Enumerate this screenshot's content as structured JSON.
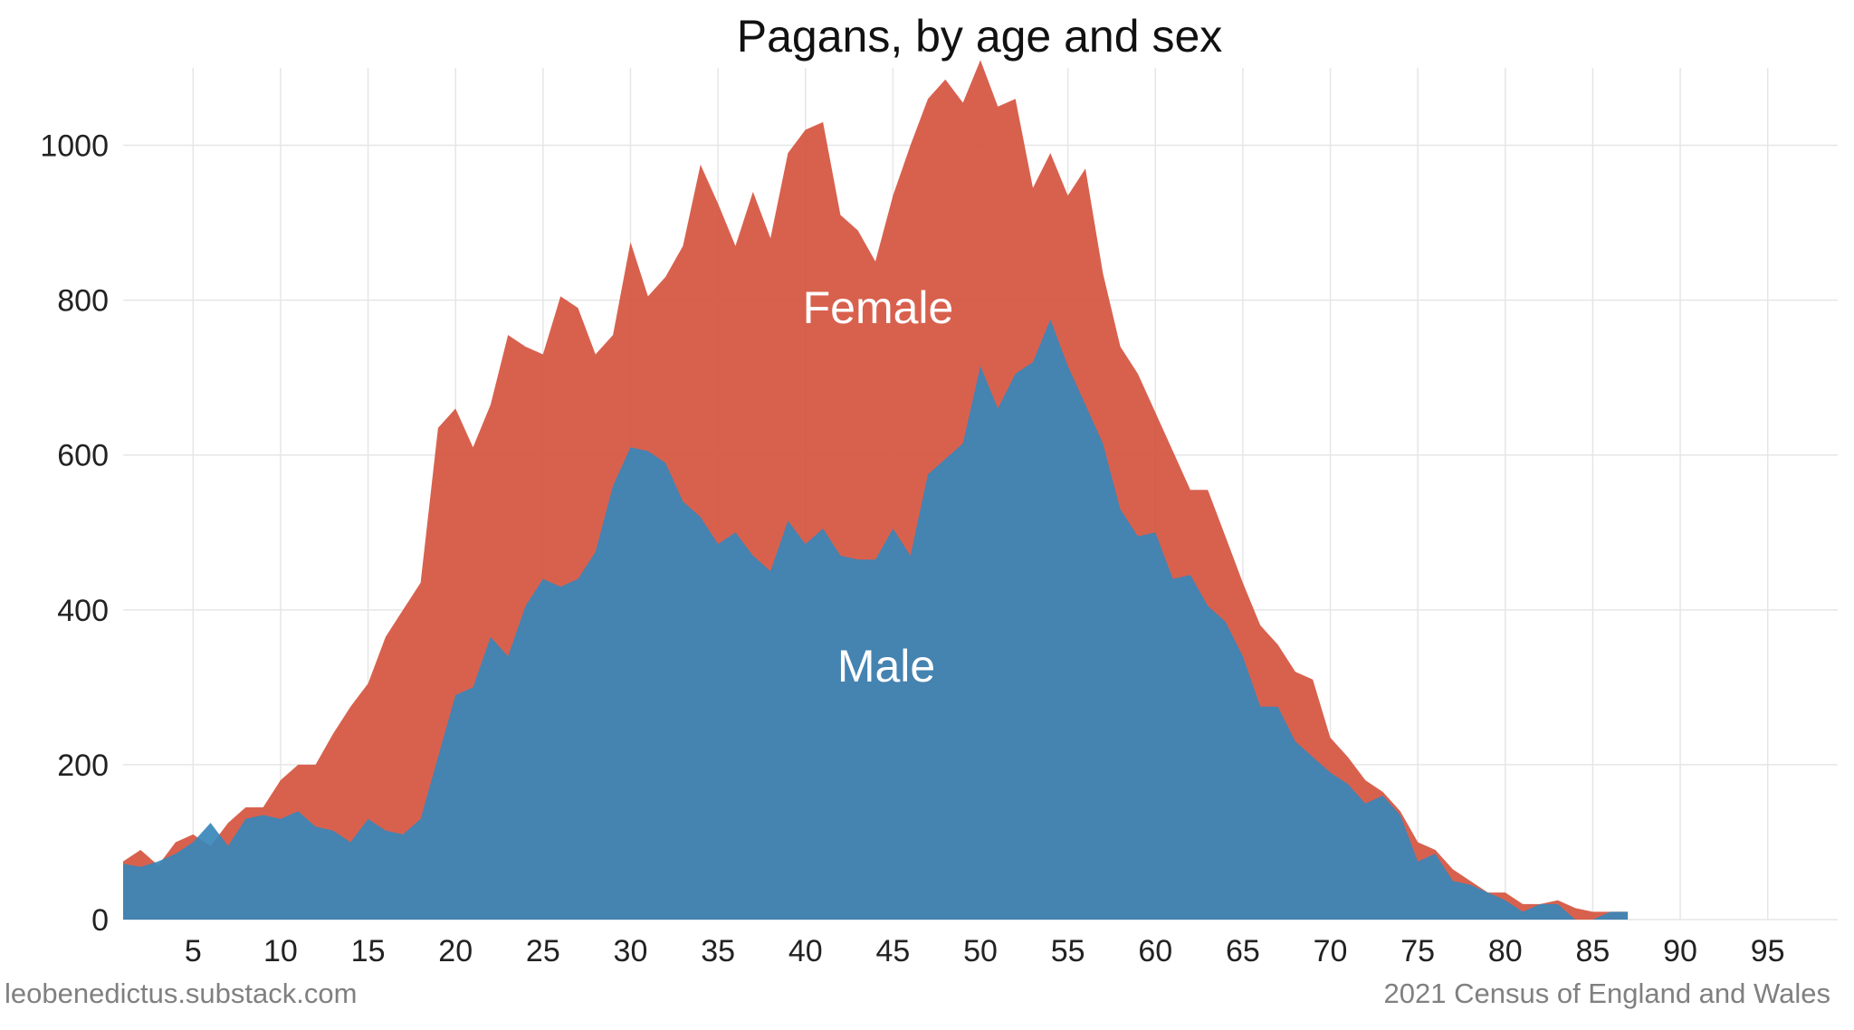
{
  "chart_data": {
    "type": "area",
    "title": "Pagans, by age and sex",
    "xlabel": "",
    "ylabel": "",
    "xlim": [
      1,
      99
    ],
    "ylim": [
      0,
      1100
    ],
    "grid": true,
    "x_ticks": [
      5,
      10,
      15,
      20,
      25,
      30,
      35,
      40,
      45,
      50,
      55,
      60,
      65,
      70,
      75,
      80,
      85,
      90,
      95
    ],
    "y_ticks": [
      0,
      200,
      400,
      600,
      800,
      1000
    ],
    "x": [
      1,
      2,
      3,
      4,
      5,
      6,
      7,
      8,
      9,
      10,
      11,
      12,
      13,
      14,
      15,
      16,
      17,
      18,
      19,
      20,
      21,
      22,
      23,
      24,
      25,
      26,
      27,
      28,
      29,
      30,
      31,
      32,
      33,
      34,
      35,
      36,
      37,
      38,
      39,
      40,
      41,
      42,
      43,
      44,
      45,
      46,
      47,
      48,
      49,
      50,
      51,
      52,
      53,
      54,
      55,
      56,
      57,
      58,
      59,
      60,
      61,
      62,
      63,
      64,
      65,
      66,
      67,
      68,
      69,
      70,
      71,
      72,
      73,
      74,
      75,
      76,
      77,
      78,
      79,
      80,
      81,
      82,
      83,
      84,
      85,
      86,
      87
    ],
    "series": [
      {
        "name": "Female",
        "color": "#d5543f",
        "values": [
          75,
          90,
          70,
          100,
          110,
          95,
          125,
          145,
          145,
          180,
          200,
          200,
          240,
          275,
          305,
          365,
          400,
          435,
          635,
          660,
          610,
          665,
          755,
          740,
          730,
          805,
          790,
          730,
          755,
          875,
          805,
          830,
          870,
          975,
          925,
          870,
          940,
          880,
          990,
          1020,
          1030,
          910,
          890,
          850,
          935,
          1000,
          1060,
          1085,
          1055,
          1110,
          1050,
          1060,
          945,
          990,
          935,
          970,
          835,
          740,
          705,
          655,
          605,
          555,
          555,
          495,
          435,
          380,
          355,
          320,
          310,
          235,
          210,
          180,
          165,
          140,
          100,
          90,
          65,
          50,
          35,
          35,
          20,
          20,
          25,
          15,
          10,
          10,
          10
        ]
      },
      {
        "name": "Male",
        "color": "#3887ba",
        "values": [
          72,
          68,
          75,
          85,
          100,
          125,
          95,
          130,
          135,
          130,
          140,
          120,
          115,
          100,
          130,
          115,
          110,
          130,
          210,
          290,
          300,
          365,
          340,
          405,
          440,
          430,
          440,
          475,
          560,
          610,
          605,
          590,
          540,
          520,
          485,
          500,
          470,
          450,
          515,
          485,
          505,
          470,
          465,
          465,
          505,
          470,
          575,
          595,
          615,
          715,
          660,
          705,
          720,
          775,
          715,
          665,
          615,
          530,
          495,
          500,
          440,
          445,
          405,
          385,
          340,
          275,
          275,
          230,
          210,
          190,
          175,
          150,
          160,
          135,
          75,
          85,
          50,
          45,
          35,
          25,
          10,
          20,
          20,
          0,
          0,
          10,
          10
        ]
      }
    ],
    "annotations": [
      "Female",
      "Male"
    ]
  },
  "footer": {
    "left": "leobenedictus.substack.com",
    "right": "2021 Census of England and Wales"
  }
}
